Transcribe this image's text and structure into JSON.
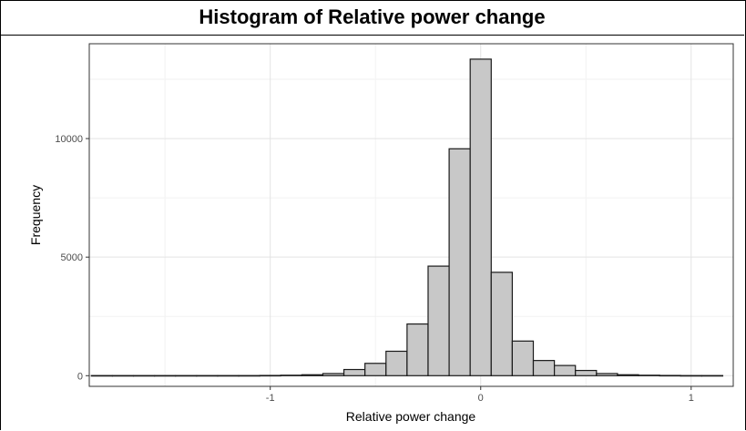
{
  "page_title": "Histogram of Relative power change",
  "chart_data": {
    "type": "bar",
    "title": "",
    "xlabel": "Relative power change",
    "ylabel": "Frequency",
    "xlim": [
      -1.86,
      1.2
    ],
    "ylim": [
      -450,
      14000
    ],
    "x_ticks": [
      -1,
      0,
      1
    ],
    "x_tick_labels": [
      "-1",
      "0",
      "1"
    ],
    "y_ticks": [
      0,
      5000,
      10000
    ],
    "y_tick_labels": [
      "0",
      "5000",
      "10000"
    ],
    "grid": true,
    "legend": "none",
    "bar_fill": "#c8c8c8",
    "bar_stroke": "#1a1a1a",
    "bin_width": 0.1,
    "bins": [
      {
        "x0": -1.85,
        "x1": -1.75,
        "count": 5
      },
      {
        "x0": -1.75,
        "x1": -1.65,
        "count": 5
      },
      {
        "x0": -1.65,
        "x1": -1.55,
        "count": 5
      },
      {
        "x0": -1.55,
        "x1": -1.45,
        "count": 5
      },
      {
        "x0": -1.45,
        "x1": -1.35,
        "count": 5
      },
      {
        "x0": -1.35,
        "x1": -1.25,
        "count": 5
      },
      {
        "x0": -1.25,
        "x1": -1.15,
        "count": 5
      },
      {
        "x0": -1.15,
        "x1": -1.05,
        "count": 5
      },
      {
        "x0": -1.05,
        "x1": -0.95,
        "count": 10
      },
      {
        "x0": -0.95,
        "x1": -0.85,
        "count": 20
      },
      {
        "x0": -0.85,
        "x1": -0.75,
        "count": 40
      },
      {
        "x0": -0.75,
        "x1": -0.65,
        "count": 90
      },
      {
        "x0": -0.65,
        "x1": -0.55,
        "count": 260
      },
      {
        "x0": -0.55,
        "x1": -0.45,
        "count": 520
      },
      {
        "x0": -0.45,
        "x1": -0.35,
        "count": 1030
      },
      {
        "x0": -0.35,
        "x1": -0.25,
        "count": 2180
      },
      {
        "x0": -0.25,
        "x1": -0.15,
        "count": 4620
      },
      {
        "x0": -0.15,
        "x1": -0.05,
        "count": 9570
      },
      {
        "x0": -0.05,
        "x1": 0.05,
        "count": 13350
      },
      {
        "x0": 0.05,
        "x1": 0.15,
        "count": 4360
      },
      {
        "x0": 0.15,
        "x1": 0.25,
        "count": 1460
      },
      {
        "x0": 0.25,
        "x1": 0.35,
        "count": 640
      },
      {
        "x0": 0.35,
        "x1": 0.45,
        "count": 430
      },
      {
        "x0": 0.45,
        "x1": 0.55,
        "count": 220
      },
      {
        "x0": 0.55,
        "x1": 0.65,
        "count": 90
      },
      {
        "x0": 0.65,
        "x1": 0.75,
        "count": 40
      },
      {
        "x0": 0.75,
        "x1": 0.85,
        "count": 20
      },
      {
        "x0": 0.85,
        "x1": 0.95,
        "count": 10
      },
      {
        "x0": 0.95,
        "x1": 1.05,
        "count": 5
      },
      {
        "x0": 1.05,
        "x1": 1.15,
        "count": 5
      }
    ]
  }
}
